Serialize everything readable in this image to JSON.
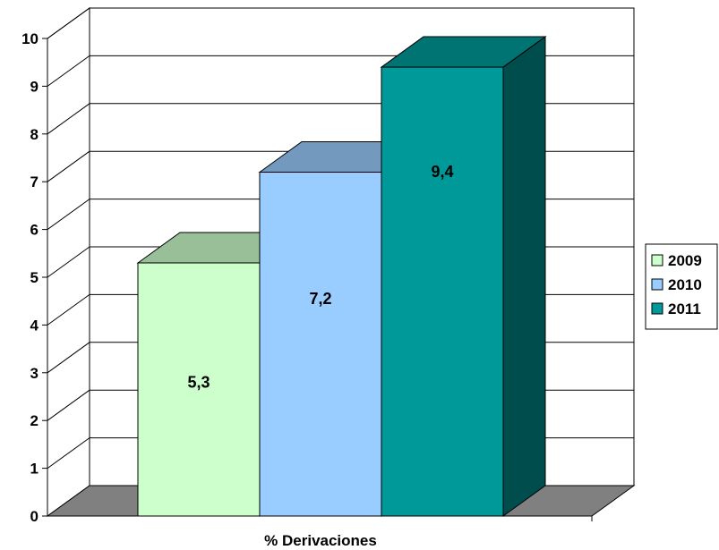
{
  "chart_data": {
    "type": "bar",
    "categories": [
      "% Derivaciones"
    ],
    "series": [
      {
        "name": "2009",
        "values": [
          5.3
        ],
        "label": "5,3",
        "color": "#ccffcc"
      },
      {
        "name": "2010",
        "values": [
          7.2
        ],
        "label": "7,2",
        "color": "#99ccff"
      },
      {
        "name": "2011",
        "values": [
          9.4
        ],
        "label": "9,4",
        "color": "#009999"
      }
    ],
    "xlabel": "% Derivaciones",
    "ylabel": "",
    "ylim": [
      0,
      10
    ],
    "yticks": [
      "0",
      "1",
      "2",
      "3",
      "4",
      "5",
      "6",
      "7",
      "8",
      "9",
      "10"
    ],
    "grid": true,
    "three_d": true,
    "legend_position": "right",
    "colors": {
      "floor": "#808080",
      "wall": "#ffffff",
      "gridline": "#000000"
    }
  }
}
